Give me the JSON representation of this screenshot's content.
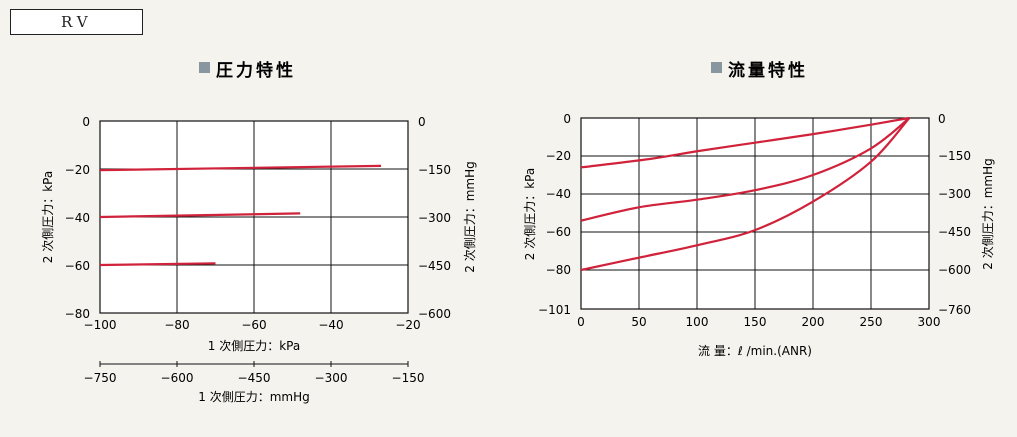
{
  "header": {
    "tag": "RV"
  },
  "chart_data": [
    {
      "type": "line",
      "title": "圧力特性",
      "xlabel": "1 次側圧力：kPa",
      "xlabel2": "1 次側圧力：mmHg",
      "ylabel": "2 次側圧力：kPa",
      "ylabel_right": "2 次側圧力：mmHg",
      "xlim": [
        -100,
        -20
      ],
      "ylim": [
        -80,
        0
      ],
      "grid": true,
      "x_ticks": [
        "−100",
        "−80",
        "−60",
        "−40",
        "−20"
      ],
      "y_ticks": [
        "0",
        "−20",
        "−40",
        "−60",
        "−80"
      ],
      "y_ticks_right": [
        "0",
        "−150",
        "−300",
        "−450",
        "−600"
      ],
      "x2_ticks": [
        "−750",
        "−600",
        "−450",
        "−300",
        "−150"
      ],
      "series": [
        {
          "x": [
            -100,
            -27
          ],
          "y": [
            -20.5,
            -18.7
          ]
        },
        {
          "x": [
            -100,
            -48
          ],
          "y": [
            -40,
            -38.5
          ]
        },
        {
          "x": [
            -100,
            -70
          ],
          "y": [
            -60,
            -59.3
          ]
        }
      ]
    },
    {
      "type": "line",
      "title": "流量特性",
      "xlabel": "流 量：ℓ /min.(ANR)",
      "ylabel": "2 次側圧力：kPa",
      "ylabel_right": "2 次側圧力：mmHg",
      "xlim": [
        0,
        300
      ],
      "y_ticks": [
        "0",
        "−20",
        "−40",
        "−60",
        "−80",
        "−101"
      ],
      "y_ticks_right": [
        "0",
        "−150",
        "−300",
        "−450",
        "−600",
        "−760"
      ],
      "x_ticks": [
        "0",
        "50",
        "100",
        "150",
        "200",
        "250",
        "300"
      ],
      "grid": true,
      "series": [
        {
          "x": [
            0,
            60,
            100,
            150,
            200,
            250,
            283
          ],
          "y": [
            -26,
            -21.5,
            -17.5,
            -13,
            -8.5,
            -3.5,
            0
          ]
        },
        {
          "x": [
            0,
            50,
            100,
            150,
            200,
            250,
            283
          ],
          "y": [
            -54,
            -47,
            -43,
            -38,
            -30,
            -16,
            0
          ]
        },
        {
          "x": [
            0,
            50,
            100,
            150,
            200,
            250,
            283
          ],
          "y": [
            -80,
            -73.5,
            -67,
            -59,
            -44,
            -23,
            0
          ]
        }
      ]
    }
  ]
}
